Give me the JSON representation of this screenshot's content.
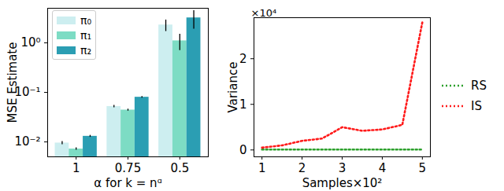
{
  "chart_data": [
    {
      "type": "bar",
      "xlabel": "α for k = nᵅ",
      "ylabel": "MSE Estimate",
      "categories": [
        "1",
        "0.75",
        "0.5"
      ],
      "series": [
        {
          "name": "π₀",
          "color": "#cdeef0",
          "values": [
            0.0095,
            0.052,
            2.3
          ],
          "errors": [
            0.0007,
            0.003,
            0.6
          ]
        },
        {
          "name": "π₁",
          "color": "#7ddcc4",
          "values": [
            0.0072,
            0.044,
            1.1
          ],
          "errors": [
            0.0004,
            0.002,
            0.4
          ]
        },
        {
          "name": "π₂",
          "color": "#2b9eb3",
          "values": [
            0.013,
            0.08,
            3.2
          ],
          "errors": [
            0.0006,
            0.003,
            1.3
          ]
        }
      ],
      "ylim": [
        0.005,
        5
      ],
      "yticks": [
        {
          "value": 0.01,
          "label": "10⁻²"
        },
        {
          "value": 0.1,
          "label": "10⁻¹"
        },
        {
          "value": 1,
          "label": "10⁰"
        }
      ],
      "log": "y",
      "legend": "upper left"
    },
    {
      "type": "line",
      "xlabel": "Samples×10²",
      "ylabel": "Variance",
      "annotations": [
        "×10⁴"
      ],
      "x": [
        1,
        1.5,
        2,
        2.5,
        3,
        3.5,
        4,
        4.5,
        5
      ],
      "series": [
        {
          "name": "RS",
          "color": "#2ca02c",
          "line_style": "dotted",
          "values": [
            0.01,
            0.01,
            0.01,
            0.01,
            0.01,
            0.01,
            0.01,
            0.01,
            0.01
          ]
        },
        {
          "name": "IS",
          "color": "#ff1a1a",
          "line_style": "dotted",
          "values": [
            0.05,
            0.1,
            0.2,
            0.25,
            0.5,
            0.42,
            0.45,
            0.55,
            2.8
          ]
        }
      ],
      "xlim": [
        0.8,
        5.2
      ],
      "xticks": [
        1,
        2,
        3,
        4,
        5
      ],
      "ylim": [
        -0.15,
        2.9
      ],
      "yticks": [
        0,
        1,
        2
      ],
      "legend": "right"
    }
  ]
}
